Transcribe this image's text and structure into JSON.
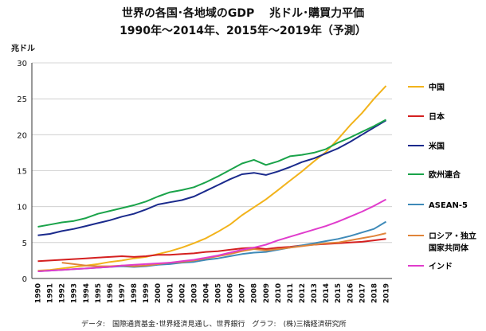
{
  "chart_data": {
    "type": "line",
    "title": "世界の各国･各地域のGDP　 兆ドル･購買力平価",
    "subtitle": "1990年～2014年、2015年～2019年（予測）",
    "ylabel": "兆ドル",
    "xlabel": "",
    "ylim": [
      0,
      30
    ],
    "yticks": [
      0,
      5,
      10,
      15,
      20,
      25,
      30
    ],
    "grid": true,
    "legend": "right",
    "x": [
      "1990",
      "1991",
      "1992",
      "1993",
      "1994",
      "1995",
      "1996",
      "1997",
      "1998",
      "1999",
      "2000",
      "2001",
      "2002",
      "2003",
      "2004",
      "2005",
      "2006",
      "2007",
      "2008",
      "2009",
      "2010",
      "2011",
      "2012",
      "2013",
      "2014",
      "2015",
      "2016",
      "2017",
      "2018",
      "2019"
    ],
    "series": [
      {
        "name": "中国",
        "color": "#f2b31b",
        "values": [
          1.1,
          1.2,
          1.4,
          1.6,
          1.8,
          2.0,
          2.3,
          2.5,
          2.8,
          3.0,
          3.4,
          3.8,
          4.3,
          4.9,
          5.6,
          6.5,
          7.5,
          8.8,
          9.9,
          11.0,
          12.3,
          13.6,
          14.9,
          16.3,
          17.6,
          19.4,
          21.3,
          23.0,
          25.0,
          26.8
        ]
      },
      {
        "name": "日本",
        "color": "#d42020",
        "values": [
          2.4,
          2.5,
          2.6,
          2.7,
          2.8,
          2.9,
          3.0,
          3.1,
          3.0,
          3.1,
          3.3,
          3.3,
          3.4,
          3.5,
          3.7,
          3.8,
          4.0,
          4.2,
          4.3,
          4.1,
          4.3,
          4.4,
          4.6,
          4.7,
          4.8,
          4.9,
          5.0,
          5.1,
          5.3,
          5.5
        ]
      },
      {
        "name": "米国",
        "color": "#1a2a8c",
        "values": [
          6.0,
          6.2,
          6.6,
          6.9,
          7.3,
          7.7,
          8.1,
          8.6,
          9.0,
          9.6,
          10.3,
          10.6,
          10.9,
          11.4,
          12.2,
          13.0,
          13.8,
          14.5,
          14.7,
          14.4,
          14.9,
          15.5,
          16.2,
          16.7,
          17.4,
          18.1,
          19.0,
          20.0,
          21.0,
          22.0
        ]
      },
      {
        "name": "欧州連合",
        "color": "#1aa34a",
        "values": [
          7.2,
          7.5,
          7.8,
          8.0,
          8.4,
          9.0,
          9.4,
          9.8,
          10.2,
          10.7,
          11.4,
          12.0,
          12.3,
          12.7,
          13.4,
          14.2,
          15.1,
          16.0,
          16.5,
          15.8,
          16.3,
          17.0,
          17.2,
          17.5,
          18.0,
          18.9,
          19.6,
          20.4,
          21.2,
          22.1
        ]
      },
      {
        "name": "ASEAN-5",
        "color": "#3e8ab8",
        "values": [
          1.0,
          1.1,
          1.2,
          1.3,
          1.4,
          1.5,
          1.6,
          1.7,
          1.6,
          1.7,
          1.9,
          2.0,
          2.2,
          2.3,
          2.6,
          2.8,
          3.1,
          3.4,
          3.6,
          3.7,
          4.0,
          4.3,
          4.6,
          4.9,
          5.2,
          5.5,
          5.9,
          6.4,
          6.9,
          7.9
        ]
      },
      {
        "name": "ロシア・独立国家共同体",
        "color": "#e0843a",
        "values": [
          null,
          null,
          2.2,
          2.0,
          1.8,
          1.7,
          1.7,
          1.8,
          1.7,
          1.8,
          2.0,
          2.2,
          2.3,
          2.5,
          2.8,
          3.1,
          3.4,
          3.8,
          4.1,
          3.9,
          4.1,
          4.3,
          4.5,
          4.7,
          4.9,
          5.0,
          5.3,
          5.6,
          5.9,
          6.3
        ]
      },
      {
        "name": "インド",
        "color": "#e03ccc",
        "values": [
          1.0,
          1.1,
          1.2,
          1.3,
          1.4,
          1.5,
          1.6,
          1.8,
          1.9,
          2.0,
          2.1,
          2.2,
          2.4,
          2.6,
          2.9,
          3.2,
          3.6,
          4.0,
          4.3,
          4.7,
          5.3,
          5.8,
          6.3,
          6.8,
          7.3,
          7.9,
          8.6,
          9.3,
          10.1,
          11.0
        ]
      }
    ]
  },
  "legend_labels": {
    "china": "中国",
    "japan": "日本",
    "usa": "米国",
    "eu": "欧州連合",
    "asean": "ASEAN-5",
    "russia_line1": "ロシア・独立",
    "russia_line2": "国家共同体",
    "india": "インド"
  },
  "footer": "データ:　国際通貨基金･世界経済見通し、世界銀行　グラフ:　(株)三橋経済研究所"
}
